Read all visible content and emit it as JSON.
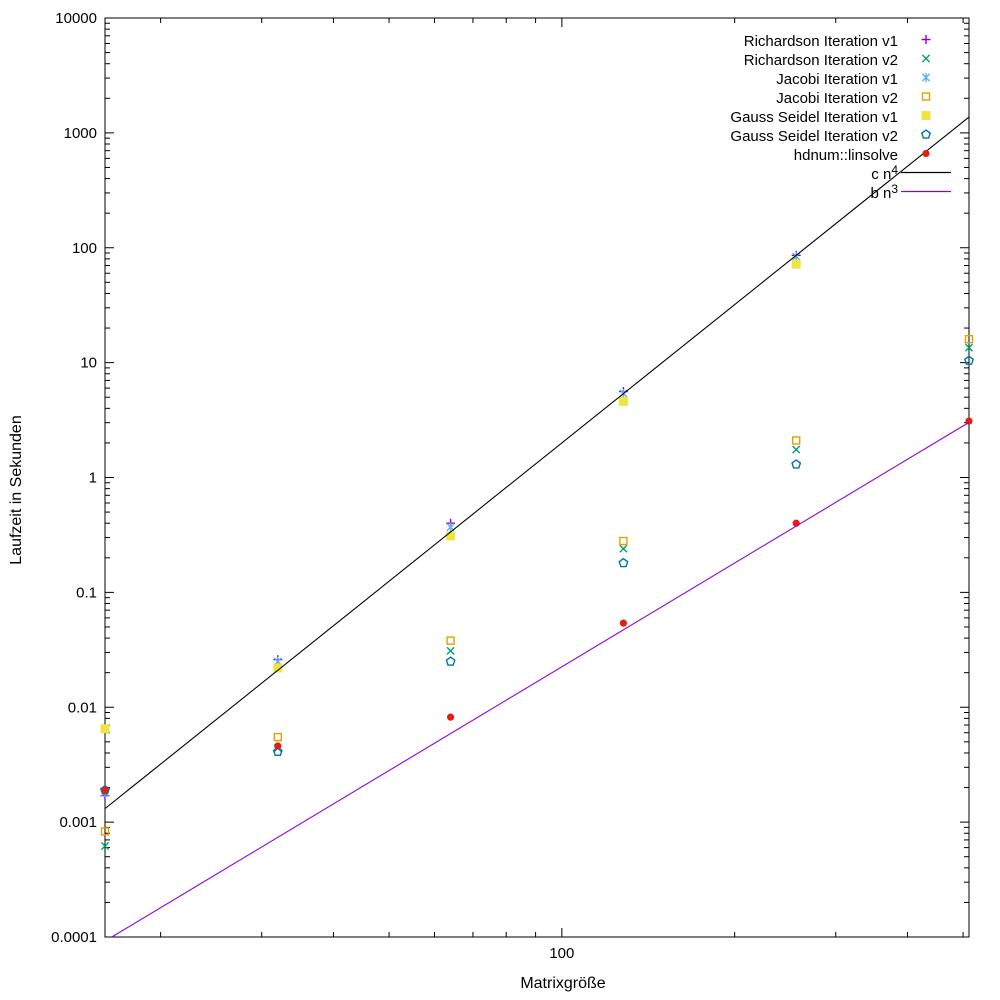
{
  "axes": {
    "x": {
      "label": "Matrixgröße",
      "scale": "log",
      "min": 16,
      "max": 512,
      "major_ticks": [
        {
          "value": 100,
          "label": "100"
        }
      ],
      "minor_ticks": [
        20,
        30,
        40,
        50,
        60,
        70,
        80,
        90,
        200,
        300,
        400,
        500
      ]
    },
    "y": {
      "label": "Laufzeit in Sekunden",
      "scale": "log",
      "min": 0.0001,
      "max": 10000,
      "major_ticks": [
        {
          "value": 10000,
          "label": "10000"
        },
        {
          "value": 1000,
          "label": "1000"
        },
        {
          "value": 100,
          "label": "100"
        },
        {
          "value": 10,
          "label": "10"
        },
        {
          "value": 1,
          "label": "1"
        },
        {
          "value": 0.1,
          "label": "0.1"
        },
        {
          "value": 0.01,
          "label": "0.01"
        },
        {
          "value": 0.001,
          "label": "0.001"
        },
        {
          "value": 0.0001,
          "label": "0.0001"
        }
      ]
    }
  },
  "chart_data": {
    "type": "scatter",
    "xlabel": "Matrixgröße",
    "ylabel": "Laufzeit in Sekunden",
    "xlim": [
      16,
      512
    ],
    "ylim": [
      0.0001,
      10000
    ],
    "xscale": "log",
    "yscale": "log",
    "x_values": [
      16,
      32,
      64,
      128,
      256,
      512
    ],
    "series": [
      {
        "name": "Richardson Iteration v1",
        "marker": "plus",
        "color": "#9400d3",
        "points": [
          [
            16,
            0.0017
          ],
          [
            32,
            0.026
          ],
          [
            64,
            0.4
          ],
          [
            128,
            5.6
          ],
          [
            256,
            86
          ]
        ]
      },
      {
        "name": "Richardson Iteration v2",
        "marker": "cross",
        "color": "#009e73",
        "points": [
          [
            16,
            0.00062
          ],
          [
            32,
            0.0044
          ],
          [
            64,
            0.031
          ],
          [
            128,
            0.24
          ],
          [
            256,
            1.75
          ],
          [
            512,
            13.5
          ]
        ]
      },
      {
        "name": "Jacobi Iteration v1",
        "marker": "asterisk",
        "color": "#56b4e9",
        "points": [
          [
            16,
            0.0018
          ],
          [
            32,
            0.025
          ],
          [
            64,
            0.37
          ],
          [
            128,
            5.4
          ],
          [
            256,
            84
          ]
        ]
      },
      {
        "name": "Jacobi Iteration v2",
        "marker": "open-square",
        "color": "#e69f00",
        "points": [
          [
            16,
            0.00083
          ],
          [
            32,
            0.0055
          ],
          [
            64,
            0.038
          ],
          [
            128,
            0.28
          ],
          [
            256,
            2.1
          ],
          [
            512,
            16
          ]
        ]
      },
      {
        "name": "Gauss Seidel Iteration v1",
        "marker": "filled-square",
        "color": "#f0e442",
        "points": [
          [
            16,
            0.0065
          ],
          [
            32,
            0.022
          ],
          [
            64,
            0.31
          ],
          [
            128,
            4.6
          ],
          [
            256,
            72
          ]
        ]
      },
      {
        "name": "Gauss Seidel Iteration v2",
        "marker": "open-pentagon",
        "color": "#0072b2",
        "points": [
          [
            16,
            0.0019
          ],
          [
            32,
            0.0041
          ],
          [
            64,
            0.025
          ],
          [
            128,
            0.18
          ],
          [
            256,
            1.3
          ],
          [
            512,
            10.4
          ]
        ]
      },
      {
        "name": "hdnum::linsolve",
        "marker": "filled-circle",
        "color": "#e51e10",
        "points": [
          [
            16,
            0.0019
          ],
          [
            32,
            0.0046
          ],
          [
            64,
            0.0082
          ],
          [
            128,
            0.054
          ],
          [
            256,
            0.4
          ],
          [
            512,
            3.1
          ]
        ]
      }
    ],
    "lines": [
      {
        "name": "c n^4",
        "coefficient": 2e-08,
        "exponent": 4,
        "color": "#000000"
      },
      {
        "name": "b n^3",
        "coefficient": 2.25e-08,
        "exponent": 3,
        "color": "#9400d3"
      }
    ],
    "legend_position": "top-right",
    "grid": false
  },
  "legend": {
    "entries": [
      {
        "label": "Richardson Iteration v1",
        "sup": "",
        "marker": "plus",
        "color": "#9400d3"
      },
      {
        "label": "Richardson Iteration v2",
        "sup": "",
        "marker": "cross",
        "color": "#009e73"
      },
      {
        "label": "Jacobi Iteration v1",
        "sup": "",
        "marker": "asterisk",
        "color": "#56b4e9"
      },
      {
        "label": "Jacobi Iteration v2",
        "sup": "",
        "marker": "open-square",
        "color": "#e69f00"
      },
      {
        "label": "Gauss Seidel Iteration v1",
        "sup": "",
        "marker": "filled-square",
        "color": "#f0e442"
      },
      {
        "label": "Gauss Seidel Iteration v2",
        "sup": "",
        "marker": "open-pentagon",
        "color": "#0072b2"
      },
      {
        "label": "hdnum::linsolve",
        "sup": "",
        "marker": "filled-circle",
        "color": "#e51e10"
      },
      {
        "label": "c n",
        "sup": "4",
        "marker": "line",
        "color": "#000000"
      },
      {
        "label": "b n",
        "sup": "3",
        "marker": "line",
        "color": "#9400d3"
      }
    ]
  },
  "colors": {
    "background": "#ffffff",
    "axis": "#000000",
    "text": "#000000"
  }
}
